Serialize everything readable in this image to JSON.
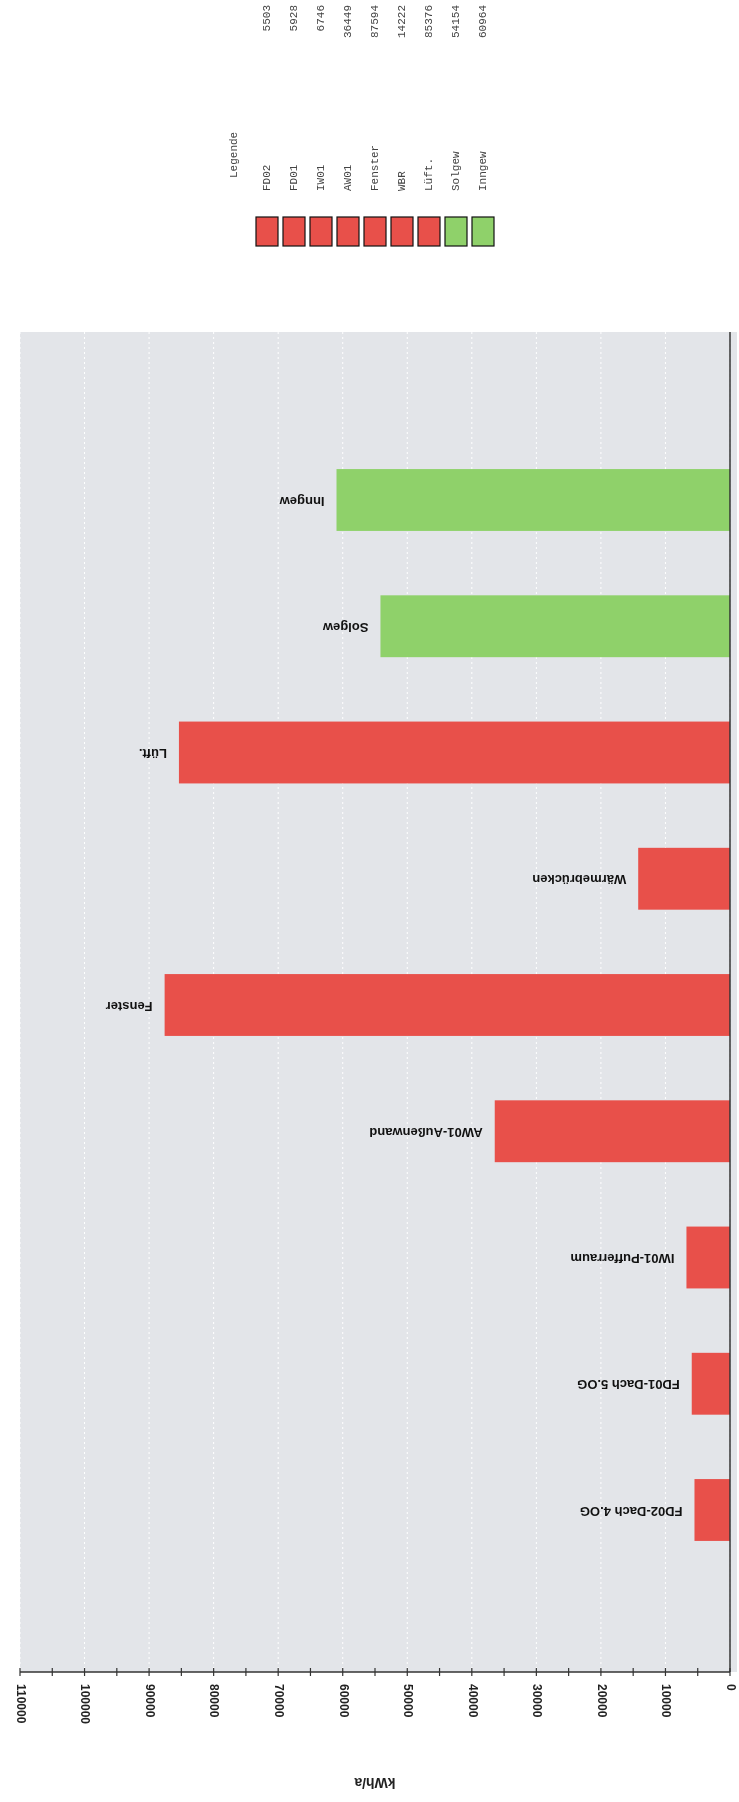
{
  "chart_data": {
    "type": "bar",
    "orientation": "horizontal",
    "xlabel": "kWh/a",
    "legend_title": "Legende",
    "grid": "x",
    "annotations": [
      "FD02",
      "5503",
      "FD01",
      "5928",
      "IW01",
      "6746",
      "AW01",
      "36449",
      "Fenster",
      "87594",
      "WBR",
      "14222",
      "Lüft.",
      "85376",
      "Solgew",
      "54154",
      "Inngew",
      "60964"
    ],
    "categories": [
      "Inngew",
      "Solgew",
      "Lüft.",
      "Wärmebrücken",
      "Fenster",
      "AW01-Außenwand",
      "IW01-Pufferraum",
      "FD01-Dach 5.OG",
      "FD02-Dach 4.OG"
    ],
    "values": [
      60964,
      54154,
      85376,
      14222,
      87594,
      36449,
      6746,
      5928,
      5503
    ],
    "colors": [
      "#8fd16a",
      "#8fd16a",
      "#e8504a",
      "#e8504a",
      "#e8504a",
      "#e8504a",
      "#e8504a",
      "#e8504a",
      "#e8504a"
    ],
    "xlim": [
      110000,
      0
    ],
    "xticks": [
      110000,
      {
        "value": 105000,
        "label": null
      },
      100000,
      {
        "value": 95000,
        "label": null
      },
      90000,
      {
        "value": 85000,
        "label": null
      },
      80000,
      {
        "value": 75000,
        "label": null
      },
      70000,
      {
        "value": 65000,
        "label": null
      },
      60000,
      {
        "value": 55000,
        "label": null
      },
      50000,
      {
        "value": 45000,
        "label": null
      },
      40000,
      {
        "value": 35000,
        "label": null
      },
      30000,
      {
        "value": 25000,
        "label": null
      },
      20000,
      {
        "value": 15000,
        "label": null
      },
      10000,
      {
        "value": 5000,
        "label": null
      },
      0
    ]
  }
}
